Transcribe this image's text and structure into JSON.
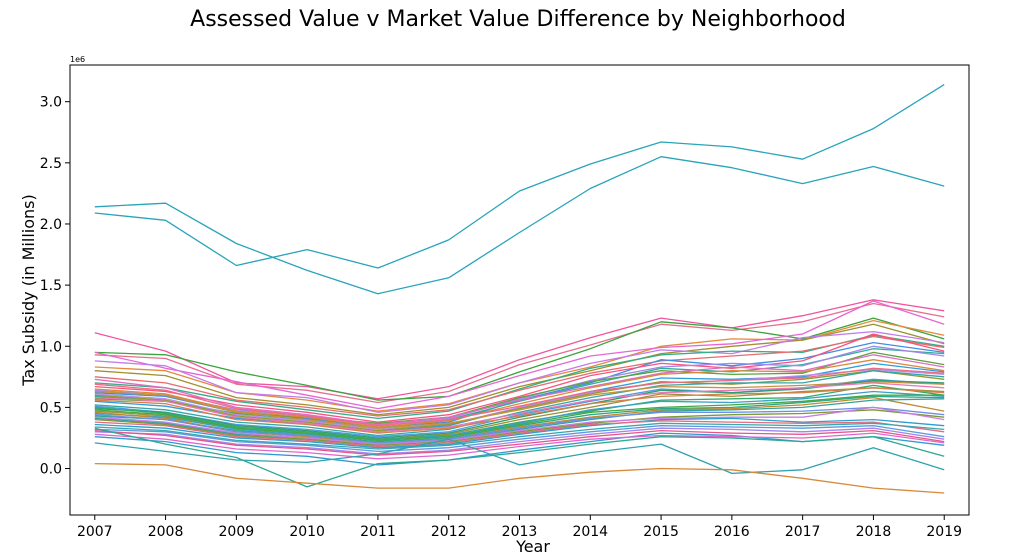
{
  "chart_data": {
    "type": "line",
    "title": "Assessed Value v Market Value Difference by Neighborhood",
    "xlabel": "Year",
    "ylabel": "Tax Subsidy (in Millions)",
    "y_offset_label": "1e6",
    "ylim": [
      -0.38,
      3.3
    ],
    "xlim": [
      2006.65,
      2019.35
    ],
    "grid": false,
    "legend": "none",
    "x": [
      2007,
      2008,
      2009,
      2010,
      2011,
      2012,
      2013,
      2014,
      2015,
      2016,
      2017,
      2018,
      2019
    ],
    "x_tick_labels": [
      "2007",
      "2008",
      "2009",
      "2010",
      "2011",
      "2012",
      "2013",
      "2014",
      "2015",
      "2016",
      "2017",
      "2018",
      "2019"
    ],
    "y_ticks": [
      0.0,
      0.5,
      1.0,
      1.5,
      2.0,
      2.5,
      3.0
    ],
    "y_tick_labels": [
      "0.0",
      "0.5",
      "1.0",
      "1.5",
      "2.0",
      "2.5",
      "3.0"
    ],
    "series": [
      {
        "color": "#29a4b9",
        "values": [
          2.14,
          2.17,
          1.84,
          1.62,
          1.43,
          1.56,
          1.93,
          2.29,
          2.55,
          2.46,
          2.33,
          2.47,
          2.31
        ]
      },
      {
        "color": "#29a4b9",
        "values": [
          2.09,
          2.03,
          1.66,
          1.79,
          1.64,
          1.87,
          2.27,
          2.49,
          2.67,
          2.63,
          2.53,
          2.78,
          3.14
        ]
      },
      {
        "color": "#f0559f",
        "values": [
          1.11,
          0.96,
          0.7,
          0.67,
          0.57,
          0.67,
          0.89,
          1.07,
          1.23,
          1.15,
          1.25,
          1.38,
          1.29
        ]
      },
      {
        "color": "#e66f8f",
        "values": [
          0.93,
          0.9,
          0.69,
          0.64,
          0.54,
          0.63,
          0.85,
          1.01,
          1.18,
          1.13,
          1.2,
          1.35,
          1.24
        ]
      },
      {
        "color": "#3ba33b",
        "values": [
          0.95,
          0.93,
          0.79,
          0.68,
          0.56,
          0.59,
          0.79,
          0.98,
          1.2,
          1.15,
          1.06,
          1.23,
          1.06
        ]
      },
      {
        "color": "#e58a3c",
        "values": [
          0.83,
          0.8,
          0.62,
          0.56,
          0.47,
          0.53,
          0.7,
          0.83,
          1.0,
          1.06,
          1.05,
          1.21,
          1.09
        ]
      },
      {
        "color": "#a0902f",
        "values": [
          0.8,
          0.76,
          0.58,
          0.52,
          0.44,
          0.5,
          0.67,
          0.8,
          0.94,
          1.0,
          1.05,
          1.18,
          1.02
        ]
      },
      {
        "color": "#e766d5",
        "values": [
          0.95,
          0.82,
          0.71,
          0.6,
          0.49,
          0.59,
          0.76,
          0.92,
          0.99,
          1.02,
          1.1,
          1.37,
          1.18
        ]
      },
      {
        "color": "#c37be7",
        "values": [
          0.88,
          0.84,
          0.62,
          0.58,
          0.46,
          0.52,
          0.7,
          0.86,
          0.97,
          0.94,
          1.07,
          1.12,
          1.03
        ]
      },
      {
        "color": "#36ad87",
        "values": [
          0.7,
          0.66,
          0.55,
          0.48,
          0.41,
          0.47,
          0.65,
          0.82,
          0.93,
          0.96,
          0.95,
          1.09,
          1.0
        ]
      },
      {
        "color": "#e86b70",
        "values": [
          0.75,
          0.7,
          0.56,
          0.5,
          0.43,
          0.48,
          0.64,
          0.78,
          0.88,
          0.92,
          0.96,
          1.08,
          0.99
        ]
      },
      {
        "color": "#3f8fe0",
        "values": [
          0.62,
          0.59,
          0.46,
          0.41,
          0.34,
          0.38,
          0.56,
          0.7,
          0.89,
          0.84,
          0.9,
          1.03,
          0.95
        ]
      },
      {
        "color": "#f6547e",
        "values": [
          0.67,
          0.63,
          0.52,
          0.46,
          0.38,
          0.44,
          0.59,
          0.76,
          0.86,
          0.82,
          0.88,
          1.1,
          0.96
        ]
      },
      {
        "color": "#2eaf9c",
        "values": [
          0.59,
          0.55,
          0.45,
          0.4,
          0.33,
          0.4,
          0.55,
          0.69,
          0.82,
          0.79,
          0.85,
          0.98,
          0.94
        ]
      },
      {
        "color": "#a486e8",
        "values": [
          0.64,
          0.6,
          0.48,
          0.43,
          0.36,
          0.41,
          0.57,
          0.72,
          0.83,
          0.86,
          0.84,
          1.0,
          0.92
        ]
      },
      {
        "color": "#60a03a",
        "values": [
          0.57,
          0.55,
          0.45,
          0.42,
          0.37,
          0.42,
          0.58,
          0.71,
          0.8,
          0.77,
          0.78,
          0.95,
          0.85
        ]
      },
      {
        "color": "#de6dc4",
        "values": [
          0.73,
          0.66,
          0.5,
          0.44,
          0.36,
          0.42,
          0.56,
          0.67,
          0.78,
          0.83,
          0.8,
          0.93,
          0.83
        ]
      },
      {
        "color": "#d98a3a",
        "values": [
          0.65,
          0.61,
          0.47,
          0.42,
          0.34,
          0.39,
          0.53,
          0.66,
          0.77,
          0.8,
          0.79,
          0.89,
          0.8
        ]
      },
      {
        "color": "#2c9ddb",
        "values": [
          0.55,
          0.51,
          0.41,
          0.37,
          0.3,
          0.35,
          0.5,
          0.63,
          0.74,
          0.73,
          0.75,
          0.86,
          0.79
        ]
      },
      {
        "color": "#b88cec",
        "values": [
          0.61,
          0.57,
          0.44,
          0.39,
          0.32,
          0.36,
          0.5,
          0.62,
          0.7,
          0.72,
          0.76,
          0.81,
          0.77
        ]
      },
      {
        "color": "#8f9a32",
        "values": [
          0.6,
          0.56,
          0.43,
          0.38,
          0.31,
          0.36,
          0.49,
          0.61,
          0.71,
          0.69,
          0.73,
          0.8,
          0.73
        ]
      },
      {
        "color": "#33a7a5",
        "values": [
          0.52,
          0.48,
          0.38,
          0.34,
          0.27,
          0.32,
          0.46,
          0.58,
          0.68,
          0.7,
          0.7,
          0.8,
          0.75
        ]
      },
      {
        "color": "#ee6a86",
        "values": [
          0.69,
          0.64,
          0.49,
          0.43,
          0.35,
          0.4,
          0.51,
          0.63,
          0.7,
          0.72,
          0.74,
          0.82,
          0.78
        ]
      },
      {
        "color": "#4f9be7",
        "values": [
          0.51,
          0.46,
          0.36,
          0.32,
          0.26,
          0.3,
          0.44,
          0.55,
          0.65,
          0.62,
          0.66,
          0.73,
          0.69
        ]
      },
      {
        "color": "#c8913b",
        "values": [
          0.63,
          0.6,
          0.46,
          0.4,
          0.33,
          0.37,
          0.48,
          0.6,
          0.67,
          0.66,
          0.68,
          0.71,
          0.69
        ]
      },
      {
        "color": "#2f9e72",
        "values": [
          0.49,
          0.46,
          0.35,
          0.31,
          0.25,
          0.29,
          0.42,
          0.53,
          0.64,
          0.62,
          0.65,
          0.72,
          0.7
        ]
      },
      {
        "color": "#e878b8",
        "values": [
          0.58,
          0.55,
          0.42,
          0.37,
          0.3,
          0.34,
          0.45,
          0.56,
          0.62,
          0.64,
          0.66,
          0.7,
          0.66
        ]
      },
      {
        "color": "#9a9236",
        "values": [
          0.47,
          0.43,
          0.33,
          0.29,
          0.24,
          0.28,
          0.4,
          0.5,
          0.61,
          0.59,
          0.63,
          0.66,
          0.63
        ]
      },
      {
        "color": "#34ab6a",
        "values": [
          0.5,
          0.45,
          0.34,
          0.3,
          0.24,
          0.27,
          0.38,
          0.47,
          0.56,
          0.57,
          0.58,
          0.68,
          0.6
        ]
      },
      {
        "color": "#3aa0c8",
        "values": [
          0.45,
          0.42,
          0.32,
          0.28,
          0.23,
          0.27,
          0.37,
          0.48,
          0.55,
          0.54,
          0.57,
          0.63,
          0.59
        ]
      },
      {
        "color": "#d97f4b",
        "values": [
          0.56,
          0.53,
          0.4,
          0.36,
          0.29,
          0.33,
          0.43,
          0.53,
          0.59,
          0.61,
          0.62,
          0.66,
          0.62
        ]
      },
      {
        "color": "#44a840",
        "values": [
          0.48,
          0.44,
          0.33,
          0.29,
          0.23,
          0.26,
          0.36,
          0.46,
          0.5,
          0.52,
          0.55,
          0.6,
          0.6
        ]
      },
      {
        "color": "#2ea88a",
        "values": [
          0.43,
          0.4,
          0.31,
          0.27,
          0.22,
          0.25,
          0.35,
          0.44,
          0.49,
          0.5,
          0.54,
          0.59,
          0.58
        ]
      },
      {
        "color": "#bf8a2f",
        "values": [
          0.46,
          0.41,
          0.3,
          0.26,
          0.21,
          0.24,
          0.34,
          0.42,
          0.48,
          0.49,
          0.52,
          0.58,
          0.47
        ]
      },
      {
        "color": "#35a39b",
        "values": [
          0.41,
          0.37,
          0.28,
          0.25,
          0.2,
          0.23,
          0.32,
          0.4,
          0.47,
          0.48,
          0.5,
          0.56,
          0.57
        ]
      },
      {
        "color": "#6a8fe5",
        "values": [
          0.44,
          0.4,
          0.3,
          0.27,
          0.21,
          0.24,
          0.33,
          0.41,
          0.46,
          0.46,
          0.47,
          0.5,
          0.44
        ]
      },
      {
        "color": "#7d9a30",
        "values": [
          0.4,
          0.36,
          0.27,
          0.24,
          0.19,
          0.22,
          0.3,
          0.37,
          0.42,
          0.44,
          0.45,
          0.48,
          0.42
        ]
      },
      {
        "color": "#c77ee6",
        "values": [
          0.42,
          0.38,
          0.29,
          0.25,
          0.2,
          0.23,
          0.31,
          0.38,
          0.41,
          0.42,
          0.42,
          0.5,
          0.4
        ]
      },
      {
        "color": "#2d9ed0",
        "values": [
          0.36,
          0.33,
          0.25,
          0.22,
          0.17,
          0.2,
          0.28,
          0.35,
          0.4,
          0.41,
          0.38,
          0.4,
          0.35
        ]
      },
      {
        "color": "#e36c7e",
        "values": [
          0.38,
          0.35,
          0.26,
          0.23,
          0.18,
          0.21,
          0.29,
          0.36,
          0.39,
          0.38,
          0.37,
          0.38,
          0.3
        ]
      },
      {
        "color": "#3aa7b0",
        "values": [
          0.34,
          0.31,
          0.23,
          0.2,
          0.16,
          0.19,
          0.26,
          0.32,
          0.37,
          0.36,
          0.35,
          0.37,
          0.32
        ]
      },
      {
        "color": "#5c9ae0",
        "values": [
          0.32,
          0.3,
          0.22,
          0.19,
          0.14,
          0.17,
          0.24,
          0.3,
          0.35,
          0.34,
          0.33,
          0.35,
          0.26
        ]
      },
      {
        "color": "#a485e8",
        "values": [
          0.3,
          0.28,
          0.2,
          0.17,
          0.12,
          0.15,
          0.22,
          0.28,
          0.33,
          0.32,
          0.3,
          0.33,
          0.24
        ]
      },
      {
        "color": "#2f99d2",
        "values": [
          0.26,
          0.22,
          0.13,
          0.1,
          0.03,
          0.07,
          0.15,
          0.22,
          0.29,
          0.27,
          0.22,
          0.26,
          0.19
        ]
      },
      {
        "color": "#e8548a",
        "values": [
          0.31,
          0.27,
          0.19,
          0.16,
          0.11,
          0.14,
          0.2,
          0.26,
          0.31,
          0.29,
          0.28,
          0.31,
          0.22
        ]
      },
      {
        "color": "#e066cf",
        "values": [
          0.28,
          0.24,
          0.16,
          0.13,
          0.08,
          0.11,
          0.18,
          0.24,
          0.27,
          0.26,
          0.25,
          0.29,
          0.21
        ]
      },
      {
        "color": "#2fa2ad",
        "values": [
          0.21,
          0.14,
          0.07,
          0.05,
          0.12,
          0.24,
          0.03,
          0.13,
          0.2,
          -0.04,
          -0.01,
          0.17,
          -0.01
        ]
      },
      {
        "color": "#2ea893",
        "values": [
          0.33,
          0.2,
          0.09,
          -0.15,
          0.04,
          0.07,
          0.13,
          0.2,
          0.26,
          0.25,
          0.22,
          0.26,
          0.1
        ]
      },
      {
        "color": "#d9893a",
        "values": [
          0.04,
          0.03,
          -0.08,
          -0.12,
          -0.16,
          -0.16,
          -0.08,
          -0.03,
          0.0,
          -0.01,
          -0.08,
          -0.16,
          -0.2
        ]
      }
    ]
  }
}
